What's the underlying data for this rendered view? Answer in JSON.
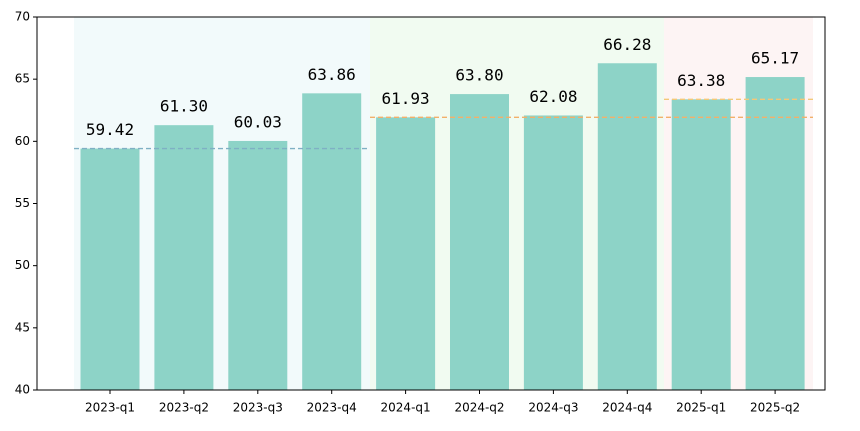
{
  "chart_data": {
    "type": "bar",
    "categories": [
      "2023-q1",
      "2023-q2",
      "2023-q3",
      "2023-q4",
      "2024-q1",
      "2024-q2",
      "2024-q3",
      "2024-q4",
      "2025-q1",
      "2025-q2"
    ],
    "values": [
      59.42,
      61.3,
      60.03,
      63.86,
      61.93,
      63.8,
      62.08,
      66.28,
      63.38,
      65.17
    ],
    "value_labels": [
      "59.42",
      "61.30",
      "60.03",
      "63.86",
      "61.93",
      "63.80",
      "62.08",
      "66.28",
      "63.38",
      "65.17"
    ],
    "color": "#8dd3c7",
    "ylim": [
      40,
      70
    ],
    "yticks": [
      40,
      45,
      50,
      55,
      60,
      65,
      70
    ]
  }
}
